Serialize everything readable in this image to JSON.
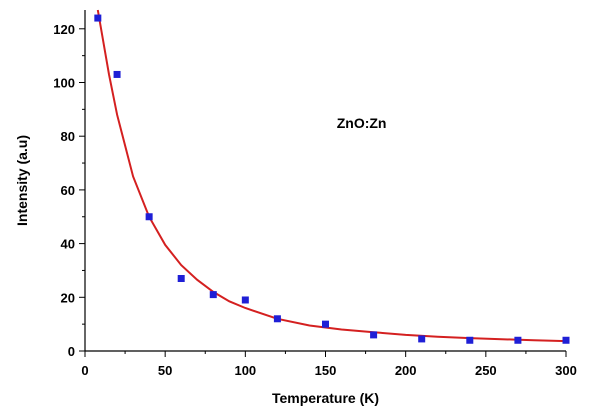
{
  "chart_data": {
    "type": "scatter",
    "title": "",
    "xlabel": "Temperature (K)",
    "ylabel": "Intensity (a.u)",
    "annotation": "ZnO:Zn",
    "xlim": [
      0,
      300
    ],
    "ylim": [
      0,
      127
    ],
    "x_ticks": [
      "0",
      "50",
      "100",
      "150",
      "200",
      "250",
      "300"
    ],
    "y_ticks": [
      "0",
      "20",
      "40",
      "60",
      "80",
      "100",
      "120"
    ],
    "grid": false,
    "legend": "none",
    "series": [
      {
        "kind": "points",
        "color": "#1f1fd6",
        "x": [
          8,
          20,
          40,
          60,
          80,
          100,
          120,
          150,
          180,
          210,
          240,
          270,
          300
        ],
        "y": [
          124,
          103,
          50,
          27,
          21,
          19,
          12,
          10,
          6,
          4.5,
          4,
          4,
          4
        ]
      },
      {
        "kind": "fit",
        "color": "#d42020",
        "x": [
          8,
          15,
          20,
          30,
          40,
          50,
          60,
          70,
          80,
          90,
          100,
          120,
          140,
          160,
          180,
          200,
          220,
          240,
          260,
          280,
          300
        ],
        "y": [
          127,
          103,
          88,
          65,
          50,
          39.5,
          32,
          26.5,
          22,
          18.5,
          16,
          12,
          9.5,
          8,
          7,
          6,
          5.3,
          4.8,
          4.4,
          4,
          3.7
        ]
      }
    ]
  }
}
